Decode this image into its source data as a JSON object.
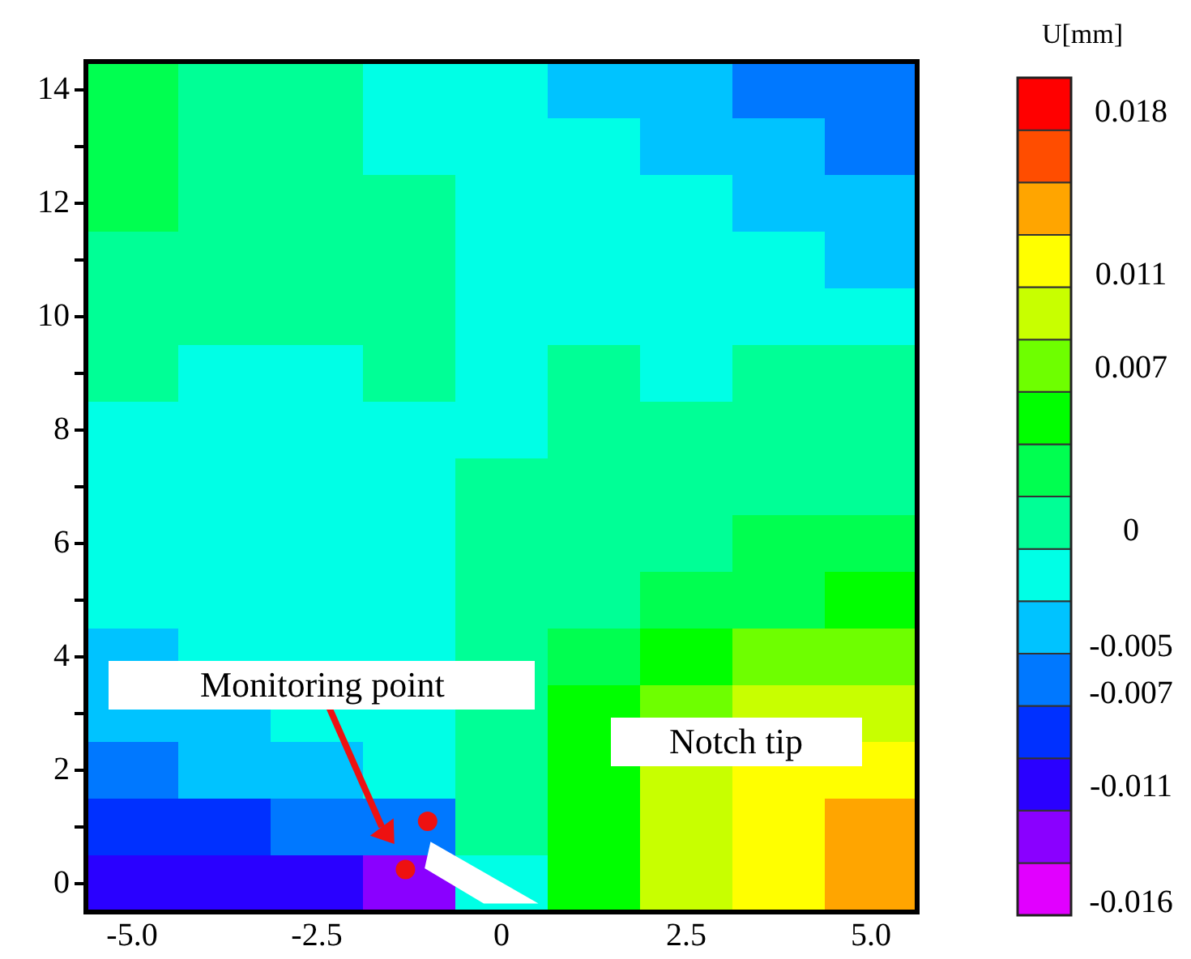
{
  "chart_data": {
    "type": "heatmap",
    "clabel": "U[mm]",
    "categories": [
      "-5.0",
      null,
      "-2.5",
      null,
      "0",
      null,
      "2.5",
      null,
      "5.0"
    ],
    "y_categories": [
      "14",
      null,
      "12",
      null,
      "10",
      null,
      "8",
      null,
      "6",
      null,
      "4",
      null,
      "2",
      null,
      "0"
    ],
    "clim": [
      -0.0165,
      0.0195
    ],
    "cticks": [
      -0.016,
      -0.011,
      -0.007,
      -0.005,
      0,
      0.007,
      0.011,
      0.018
    ],
    "cells": [
      [
        0.0026,
        0.0004,
        0.0004,
        -0.0019,
        -0.0019,
        -0.0041,
        -0.0041,
        -0.0064,
        -0.0064
      ],
      [
        0.0026,
        0.0004,
        0.0004,
        -0.0019,
        -0.0019,
        -0.0019,
        -0.0041,
        -0.0041,
        -0.0064
      ],
      [
        0.0026,
        0.0004,
        0.0004,
        0.0004,
        -0.0019,
        -0.0019,
        -0.0019,
        -0.0041,
        -0.0041
      ],
      [
        0.0004,
        0.0004,
        0.0004,
        0.0004,
        -0.0019,
        -0.0019,
        -0.0019,
        -0.0019,
        -0.0041
      ],
      [
        0.0004,
        0.0004,
        0.0004,
        0.0004,
        -0.0019,
        -0.0019,
        -0.0019,
        -0.0019,
        -0.0019
      ],
      [
        0.0004,
        -0.0019,
        -0.0019,
        0.0004,
        -0.0019,
        0.0004,
        -0.0019,
        0.0004,
        0.0004
      ],
      [
        -0.0019,
        -0.0019,
        -0.0019,
        -0.0019,
        -0.0019,
        0.0004,
        0.0004,
        0.0004,
        0.0004
      ],
      [
        -0.0019,
        -0.0019,
        -0.0019,
        -0.0019,
        0.0004,
        0.0004,
        0.0004,
        0.0004,
        0.0004
      ],
      [
        -0.0019,
        -0.0019,
        -0.0019,
        -0.0019,
        0.0004,
        0.0004,
        0.0004,
        0.0026,
        0.0026
      ],
      [
        -0.0019,
        -0.0019,
        -0.0019,
        -0.0019,
        0.0004,
        0.0004,
        0.0026,
        0.0026,
        0.0049
      ],
      [
        -0.0041,
        -0.0019,
        -0.0019,
        -0.0019,
        0.0004,
        0.0026,
        0.0049,
        0.0071,
        0.0071
      ],
      [
        -0.0041,
        -0.0041,
        -0.0019,
        -0.0019,
        0.0004,
        0.0049,
        0.0071,
        0.0094,
        0.0094
      ],
      [
        -0.0064,
        -0.0041,
        -0.0041,
        -0.0019,
        0.0004,
        0.0049,
        0.0094,
        0.0116,
        0.0116
      ],
      [
        -0.0086,
        -0.0086,
        -0.0064,
        -0.0064,
        0.0004,
        0.0049,
        0.0094,
        0.0116,
        0.0139
      ],
      [
        -0.0109,
        -0.0109,
        -0.0109,
        -0.0131,
        -0.0019,
        0.0049,
        0.0094,
        0.0116,
        0.0139
      ]
    ],
    "annotations": [
      "Monitoring point",
      "Notch tip"
    ]
  }
}
